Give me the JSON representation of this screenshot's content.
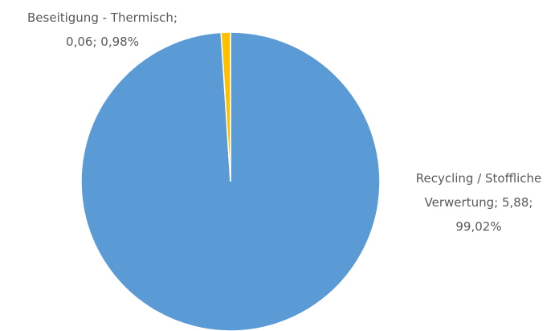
{
  "chart_data": {
    "type": "pie",
    "categories": [
      "Recycling / Stoffliche Verwertung",
      "Beseitigung - Thermisch"
    ],
    "values": [
      5.88,
      0.06
    ],
    "value_labels": [
      "5,88",
      "0,06"
    ],
    "percents": [
      99.02,
      0.98
    ],
    "percent_labels": [
      "99,02%",
      "0,98%"
    ],
    "separator": ";",
    "colors": [
      "#5b9bd5",
      "#ffc000"
    ]
  }
}
